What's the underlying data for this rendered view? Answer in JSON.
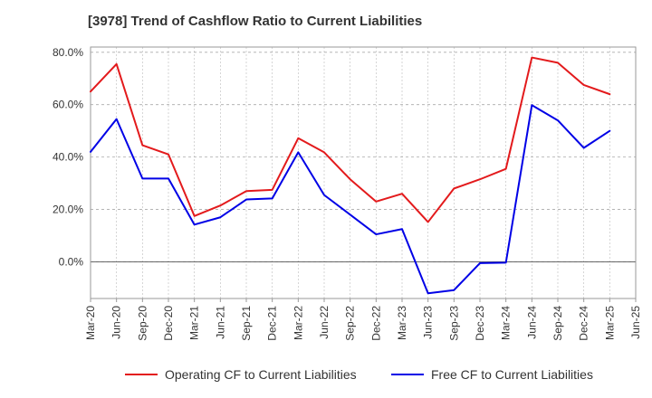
{
  "chart_data": {
    "type": "line",
    "title": "[3978]  Trend of Cashflow Ratio to Current Liabilities",
    "xlabel": "",
    "ylabel": "",
    "x": [
      "Mar-20",
      "Jun-20",
      "Sep-20",
      "Dec-20",
      "Mar-21",
      "Jun-21",
      "Sep-21",
      "Dec-21",
      "Mar-22",
      "Jun-22",
      "Sep-22",
      "Dec-22",
      "Mar-23",
      "Jun-23",
      "Sep-23",
      "Dec-23",
      "Mar-24",
      "Jun-24",
      "Sep-24",
      "Dec-24",
      "Mar-25",
      "Jun-25"
    ],
    "x_tick_labels": [
      "Mar-20",
      "Jun-20",
      "Sep-20",
      "Dec-20",
      "Mar-21",
      "Jun-21",
      "Sep-21",
      "Dec-21",
      "Mar-22",
      "Jun-22",
      "Sep-22",
      "Dec-22",
      "Mar-23",
      "Jun-23",
      "Sep-23",
      "Dec-23",
      "Mar-24",
      "Jun-24",
      "Sep-24",
      "Dec-24",
      "Mar-25",
      "Jun-25"
    ],
    "y_tick_labels": [
      "0.0%",
      "20.0%",
      "40.0%",
      "60.0%",
      "80.0%"
    ],
    "y_ticks": [
      0,
      20,
      40,
      60,
      80
    ],
    "ylim": [
      -14,
      82
    ],
    "grid": "horizontal dashed",
    "legend_position": "bottom",
    "series": [
      {
        "name": "Operating CF to Current Liabilities",
        "color": "#e31a1c",
        "values": [
          65.0,
          75.5,
          44.5,
          41.0,
          17.5,
          21.5,
          27.0,
          27.5,
          47.2,
          41.8,
          31.5,
          23.0,
          26.0,
          15.2,
          28.0,
          31.5,
          35.5,
          78.0,
          76.0,
          67.5,
          64.0,
          null
        ]
      },
      {
        "name": "Free CF to Current Liabilities",
        "color": "#0000e6",
        "values": [
          42.0,
          54.5,
          31.8,
          31.8,
          14.2,
          17.0,
          23.8,
          24.2,
          41.8,
          25.5,
          18.0,
          10.5,
          12.5,
          -12.0,
          -10.8,
          -0.5,
          -0.3,
          59.8,
          54.0,
          43.5,
          50.0,
          null
        ]
      }
    ]
  }
}
